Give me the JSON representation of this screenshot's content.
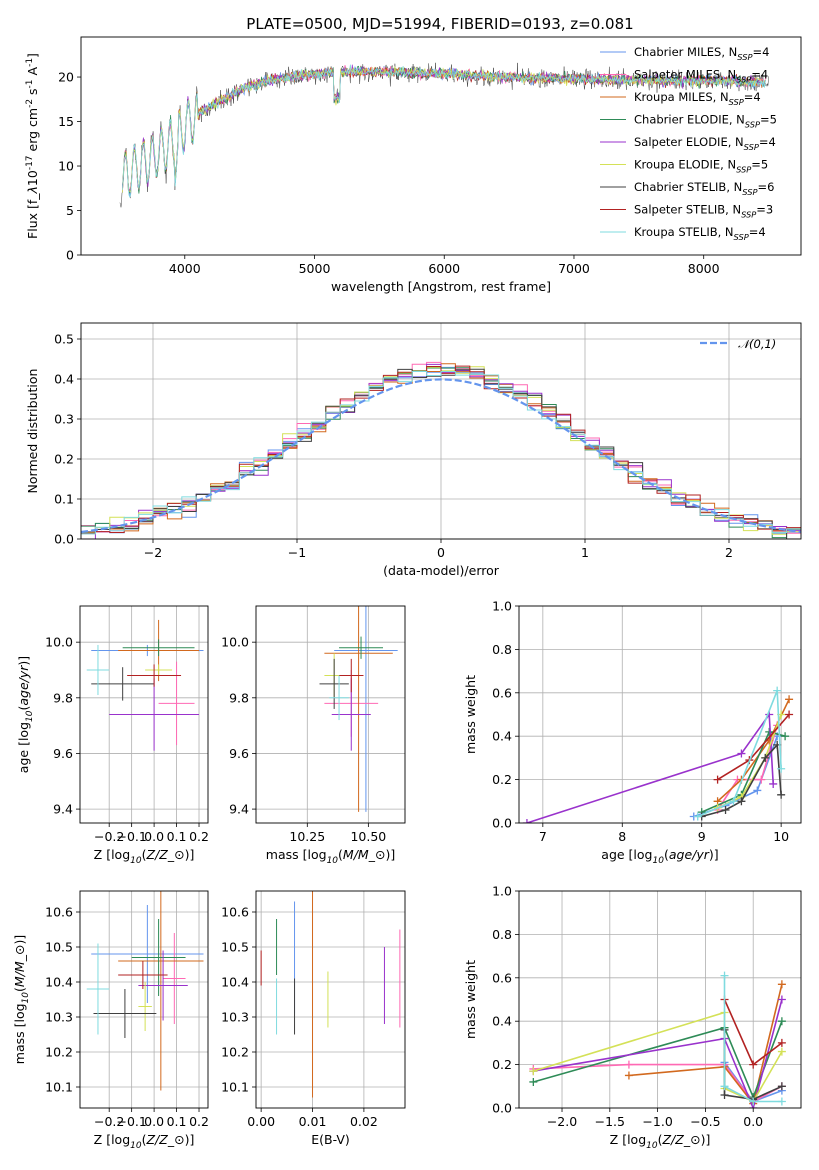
{
  "figure": {
    "title": "PLATE=0500, MJD=51994, FIBERID=0193, z=0.081"
  },
  "colors": {
    "chabrier_miles": "#6495ed",
    "salpeter_miles": "#ff69b4",
    "kroupa_miles": "#d2691e",
    "chabrier_elodie": "#2e8b57",
    "salpeter_elodie": "#9932cc",
    "kroupa_elodie": "#d4e157",
    "chabrier_stelib": "#404040",
    "salpeter_stelib": "#b22222",
    "kroupa_stelib": "#7fdbdf",
    "normal_curve": "#6495ed",
    "grid": "#b0b0b0"
  },
  "chart_data": [
    {
      "id": "spectrum",
      "type": "line",
      "xlabel": "wavelength [Angstrom, rest frame]",
      "ylabel": "Flux [f$_\\lambda$10$^{-17}$ erg cm$^{-2}$ s$^{-1}$ A$^{-1}$]",
      "xlim": [
        3200,
        8750
      ],
      "ylim": [
        0,
        24.5
      ],
      "xticks": [
        4000,
        5000,
        6000,
        7000,
        8000
      ],
      "yticks": [
        0,
        5,
        10,
        15,
        20
      ],
      "grid": false,
      "legend": "top-right",
      "series": [
        {
          "name": "Chabrier MILES, N$_{SSP}$=4",
          "color_key": "chabrier_miles"
        },
        {
          "name": "Salpeter MILES, N$_{SSP}$=4",
          "color_key": "salpeter_miles"
        },
        {
          "name": "Kroupa MILES, N$_{SSP}$=4",
          "color_key": "kroupa_miles"
        },
        {
          "name": "Chabrier ELODIE, N$_{SSP}$=5",
          "color_key": "chabrier_elodie"
        },
        {
          "name": "Salpeter ELODIE, N$_{SSP}$=4",
          "color_key": "salpeter_elodie"
        },
        {
          "name": "Kroupa ELODIE, N$_{SSP}$=5",
          "color_key": "kroupa_elodie"
        },
        {
          "name": "Chabrier STELIB, N$_{SSP}$=6",
          "color_key": "chabrier_stelib"
        },
        {
          "name": "Salpeter STELIB, N$_{SSP}$=3",
          "color_key": "salpeter_stelib"
        },
        {
          "name": "Kroupa STELIB, N$_{SSP}$=4",
          "color_key": "kroupa_stelib"
        }
      ],
      "continuum": {
        "x": [
          3500,
          3700,
          3900,
          4000,
          4100,
          4300,
          4500,
          4700,
          4900,
          5100,
          5300,
          5500,
          5700,
          5900,
          6100,
          6300,
          6500,
          6700,
          6900,
          7100,
          7300,
          7500,
          7700,
          7900,
          8100,
          8300,
          8500
        ],
        "y": [
          8.5,
          10.5,
          12.5,
          14.5,
          15.8,
          17.5,
          19,
          19.8,
          20.2,
          20.5,
          20.6,
          20.6,
          20.5,
          20.4,
          20.3,
          20.1,
          20,
          19.9,
          19.8,
          19.8,
          19.7,
          19.7,
          19.6,
          19.6,
          19.6,
          19.5,
          19.4
        ]
      }
    },
    {
      "id": "residuals",
      "type": "line",
      "xlabel": "(data-model)/error",
      "ylabel": "Normed distribution",
      "xlim": [
        -2.5,
        2.5
      ],
      "ylim": [
        0,
        0.54
      ],
      "xticks": [
        -2,
        -1,
        0,
        1,
        2
      ],
      "xticklabels": [
        "−2",
        "−1",
        "0",
        "1",
        "2"
      ],
      "yticks": [
        0.0,
        0.1,
        0.2,
        0.3,
        0.4,
        0.5
      ],
      "grid": true,
      "legend": "top-right",
      "normal_label": "$\\mathcal{N}(0,1)$",
      "bin_width": 0.1
    },
    {
      "id": "age_vs_Z",
      "type": "scatter",
      "xlabel": "Z [log$_{10}$($Z/Z_\\odot$)]",
      "ylabel": "age  [log$_{10}$($age/yr$)]",
      "xlim": [
        -0.33,
        0.24
      ],
      "ylim": [
        9.35,
        10.13
      ],
      "xticks": [
        -0.2,
        -0.1,
        0.0,
        0.1,
        0.2
      ],
      "xticklabels": [
        "−0.2",
        "−0.1",
        "0.0",
        "0.1",
        "0.2"
      ],
      "yticks": [
        9.4,
        9.6,
        9.8,
        10.0
      ],
      "grid": true,
      "points": [
        {
          "color_key": "chabrier_miles",
          "x": -0.03,
          "xerr": 0.25,
          "y": 9.97,
          "yerr": 0.02
        },
        {
          "color_key": "salpeter_miles",
          "x": 0.1,
          "xerr": 0.08,
          "y": 9.78,
          "yerr": 0.15
        },
        {
          "color_key": "kroupa_miles",
          "x": 0.02,
          "xerr": 0.18,
          "y": 9.97,
          "yerr": 0.11
        },
        {
          "color_key": "chabrier_elodie",
          "x": 0.02,
          "xerr": 0.16,
          "y": 9.98,
          "yerr": 0.03
        },
        {
          "color_key": "salpeter_elodie",
          "x": 0.0,
          "xerr": 0.2,
          "y": 9.74,
          "yerr": 0.13
        },
        {
          "color_key": "kroupa_elodie",
          "x": 0.02,
          "xerr": 0.06,
          "y": 9.9,
          "yerr": 0.02
        },
        {
          "color_key": "chabrier_stelib",
          "x": -0.14,
          "xerr": 0.14,
          "y": 9.85,
          "yerr": 0.06
        },
        {
          "color_key": "salpeter_stelib",
          "x": 0.0,
          "xerr": 0.12,
          "y": 9.88,
          "yerr": 0.04
        },
        {
          "color_key": "kroupa_stelib",
          "x": -0.25,
          "xerr": 0.05,
          "y": 9.9,
          "yerr": 0.09
        }
      ]
    },
    {
      "id": "age_vs_mass",
      "type": "scatter",
      "xlabel": "mass [log$_{10}$($M/M_\\odot$)]",
      "ylabel": "",
      "xlim": [
        10.04,
        10.65
      ],
      "ylim": [
        9.35,
        10.13
      ],
      "xticks": [
        10.25,
        10.5
      ],
      "xticklabels": [
        "10.25",
        "10.50"
      ],
      "yticks": [
        9.4,
        9.6,
        9.8,
        10.0
      ],
      "grid": true,
      "points": [
        {
          "color_key": "chabrier_miles",
          "x": 10.49,
          "xerr": 0.13,
          "y": 9.97,
          "yerr": 0.58
        },
        {
          "color_key": "salpeter_miles",
          "x": 10.43,
          "xerr": 0.11,
          "y": 9.78,
          "yerr": 0.12
        },
        {
          "color_key": "kroupa_miles",
          "x": 10.46,
          "xerr": 0.14,
          "y": 9.96,
          "yerr": 0.57
        },
        {
          "color_key": "chabrier_elodie",
          "x": 10.47,
          "xerr": 0.09,
          "y": 9.98,
          "yerr": 0.04
        },
        {
          "color_key": "salpeter_elodie",
          "x": 10.43,
          "xerr": 0.08,
          "y": 9.74,
          "yerr": 0.13
        },
        {
          "color_key": "kroupa_elodie",
          "x": 10.36,
          "xerr": 0.04,
          "y": 9.88,
          "yerr": 0.08
        },
        {
          "color_key": "chabrier_stelib",
          "x": 10.36,
          "xerr": 0.06,
          "y": 9.85,
          "yerr": 0.09
        },
        {
          "color_key": "salpeter_stelib",
          "x": 10.43,
          "xerr": 0.05,
          "y": 9.88,
          "yerr": 0.06
        },
        {
          "color_key": "kroupa_stelib",
          "x": 10.38,
          "xerr": 0.04,
          "y": 9.8,
          "yerr": 0.08
        }
      ]
    },
    {
      "id": "weight_vs_age",
      "type": "line",
      "xlabel": "age  [log$_{10}$($age/yr$)]",
      "ylabel": "mass weight",
      "xlim": [
        6.7,
        10.25
      ],
      "ylim": [
        0,
        1.0
      ],
      "xticks": [
        7,
        8,
        9,
        10
      ],
      "yticks": [
        0.0,
        0.2,
        0.4,
        0.6,
        0.8,
        1.0
      ],
      "grid": true,
      "series": [
        {
          "color_key": "chabrier_miles",
          "x": [
            8.9,
            9.3,
            9.7,
            9.95
          ],
          "y": [
            0.03,
            0.08,
            0.15,
            0.4
          ]
        },
        {
          "color_key": "salpeter_miles",
          "x": [
            9.2,
            9.45,
            9.75,
            9.95
          ],
          "y": [
            0.06,
            0.2,
            0.2,
            0.45
          ]
        },
        {
          "color_key": "kroupa_miles",
          "x": [
            9.2,
            9.5,
            9.85,
            10.1
          ],
          "y": [
            0.1,
            0.2,
            0.38,
            0.57
          ]
        },
        {
          "color_key": "chabrier_elodie",
          "x": [
            9.0,
            9.5,
            9.85,
            10.05
          ],
          "y": [
            0.05,
            0.13,
            0.42,
            0.4
          ]
        },
        {
          "color_key": "salpeter_elodie",
          "x": [
            6.8,
            9.5,
            9.85,
            9.9
          ],
          "y": [
            0.0,
            0.32,
            0.5,
            0.18
          ]
        },
        {
          "color_key": "kroupa_elodie",
          "x": [
            9.2,
            9.5,
            9.8,
            10.0
          ],
          "y": [
            0.07,
            0.12,
            0.3,
            0.5
          ]
        },
        {
          "color_key": "chabrier_stelib",
          "x": [
            9.0,
            9.3,
            9.5,
            9.8,
            9.95,
            10.0
          ],
          "y": [
            0.03,
            0.06,
            0.1,
            0.3,
            0.36,
            0.13
          ]
        },
        {
          "color_key": "salpeter_stelib",
          "x": [
            9.2,
            9.6,
            10.1
          ],
          "y": [
            0.2,
            0.29,
            0.5
          ]
        },
        {
          "color_key": "kroupa_stelib",
          "x": [
            8.95,
            9.4,
            9.95,
            10.0
          ],
          "y": [
            0.03,
            0.1,
            0.61,
            0.25
          ]
        }
      ]
    },
    {
      "id": "mass_vs_Z",
      "type": "scatter",
      "xlabel": "Z [log$_{10}$($Z/Z_\\odot$)]",
      "ylabel": "mass [log$_{10}$($M/M_\\odot$)]",
      "xlim": [
        -0.33,
        0.24
      ],
      "ylim": [
        10.04,
        10.66
      ],
      "xticks": [
        -0.2,
        -0.1,
        0.0,
        0.1,
        0.2
      ],
      "xticklabels": [
        "−0.2",
        "−0.1",
        "0.0",
        "0.1",
        "0.2"
      ],
      "yticks": [
        10.1,
        10.2,
        10.3,
        10.4,
        10.5,
        10.6
      ],
      "grid": true,
      "points": [
        {
          "color_key": "chabrier_miles",
          "x": -0.03,
          "xerr": 0.25,
          "y": 10.48,
          "yerr": 0.14
        },
        {
          "color_key": "salpeter_miles",
          "x": 0.09,
          "xerr": 0.05,
          "y": 10.41,
          "yerr": 0.13
        },
        {
          "color_key": "kroupa_miles",
          "x": 0.03,
          "xerr": 0.19,
          "y": 10.46,
          "yerr": 0.37
        },
        {
          "color_key": "chabrier_elodie",
          "x": 0.02,
          "xerr": 0.12,
          "y": 10.47,
          "yerr": 0.11
        },
        {
          "color_key": "salpeter_elodie",
          "x": 0.04,
          "xerr": 0.11,
          "y": 10.39,
          "yerr": 0.1
        },
        {
          "color_key": "kroupa_elodie",
          "x": -0.04,
          "xerr": 0.03,
          "y": 10.33,
          "yerr": 0.07
        },
        {
          "color_key": "chabrier_stelib",
          "x": -0.13,
          "xerr": 0.14,
          "y": 10.31,
          "yerr": 0.07
        },
        {
          "color_key": "salpeter_stelib",
          "x": -0.05,
          "xerr": 0.11,
          "y": 10.42,
          "yerr": 0.04
        },
        {
          "color_key": "kroupa_stelib",
          "x": -0.25,
          "xerr": 0.05,
          "y": 10.38,
          "yerr": 0.13
        }
      ]
    },
    {
      "id": "mass_vs_ebv",
      "type": "scatter",
      "xlabel": "E(B-V)",
      "ylabel": "",
      "xlim": [
        -0.001,
        0.028
      ],
      "ylim": [
        10.04,
        10.66
      ],
      "xticks": [
        0.0,
        0.01,
        0.02
      ],
      "xticklabels": [
        "0.00",
        "0.01",
        "0.02"
      ],
      "yticks": [
        10.1,
        10.2,
        10.3,
        10.4,
        10.5,
        10.6
      ],
      "grid": true,
      "points": [
        {
          "color_key": "chabrier_miles",
          "x": 0.0065,
          "y": 10.47,
          "yerr": 0.16
        },
        {
          "color_key": "salpeter_miles",
          "x": 0.027,
          "y": 10.41,
          "yerr": 0.14
        },
        {
          "color_key": "kroupa_miles",
          "x": 0.01,
          "y": 10.4,
          "yerr": 0.33
        },
        {
          "color_key": "chabrier_elodie",
          "x": 0.003,
          "y": 10.5,
          "yerr": 0.08
        },
        {
          "color_key": "salpeter_elodie",
          "x": 0.024,
          "y": 10.39,
          "yerr": 0.11
        },
        {
          "color_key": "kroupa_elodie",
          "x": 0.013,
          "y": 10.35,
          "yerr": 0.08
        },
        {
          "color_key": "chabrier_stelib",
          "x": 0.0065,
          "y": 10.33,
          "yerr": 0.08
        },
        {
          "color_key": "salpeter_stelib",
          "x": 0.0,
          "y": 10.44,
          "yerr": 0.05
        },
        {
          "color_key": "kroupa_stelib",
          "x": 0.003,
          "y": 10.33,
          "yerr": 0.08
        }
      ]
    },
    {
      "id": "weight_vs_Z",
      "type": "line",
      "xlabel": "Z [log$_{10}$($Z/Z_\\odot$)]",
      "ylabel": "mass weight",
      "xlim": [
        -2.45,
        0.5
      ],
      "ylim": [
        0,
        1.0
      ],
      "xticks": [
        -2.0,
        -1.5,
        -1.0,
        -0.5,
        0.0
      ],
      "xticklabels": [
        "−2.0",
        "−1.5",
        "−1.0",
        "−0.5",
        "0.0"
      ],
      "yticks": [
        0.0,
        0.2,
        0.4,
        0.6,
        0.8,
        1.0
      ],
      "grid": true,
      "series": [
        {
          "color_key": "chabrier_miles",
          "x": [
            -0.3,
            0.0,
            0.3
          ],
          "y": [
            0.21,
            0.03,
            0.08
          ]
        },
        {
          "color_key": "salpeter_miles",
          "x": [
            -2.3,
            -1.3,
            -0.3,
            0.0,
            0.3
          ],
          "y": [
            0.18,
            0.2,
            0.2,
            0.03,
            0.1
          ]
        },
        {
          "color_key": "kroupa_miles",
          "x": [
            -1.3,
            -0.3,
            0.0,
            0.3
          ],
          "y": [
            0.15,
            0.19,
            0.02,
            0.57
          ]
        },
        {
          "color_key": "chabrier_elodie",
          "x": [
            -2.3,
            -0.3,
            0.0,
            0.3
          ],
          "y": [
            0.12,
            0.37,
            0.05,
            0.4
          ]
        },
        {
          "color_key": "salpeter_elodie",
          "x": [
            -2.3,
            -0.3,
            0.0,
            0.3
          ],
          "y": [
            0.17,
            0.32,
            0.0,
            0.5
          ]
        },
        {
          "color_key": "kroupa_elodie",
          "x": [
            -2.3,
            -0.3,
            -0.3,
            0.0,
            0.3
          ],
          "y": [
            0.17,
            0.44,
            0.09,
            0.03,
            0.26
          ]
        },
        {
          "color_key": "chabrier_stelib",
          "x": [
            -0.3,
            -0.3,
            0.0,
            0.3
          ],
          "y": [
            0.36,
            0.06,
            0.04,
            0.1
          ]
        },
        {
          "color_key": "salpeter_stelib",
          "x": [
            -0.3,
            0.0,
            0.3
          ],
          "y": [
            0.5,
            0.2,
            0.3
          ]
        },
        {
          "color_key": "kroupa_stelib",
          "x": [
            -0.3,
            -0.3,
            0.0,
            0.3
          ],
          "y": [
            0.61,
            0.1,
            0.03,
            0.03
          ]
        }
      ]
    }
  ]
}
